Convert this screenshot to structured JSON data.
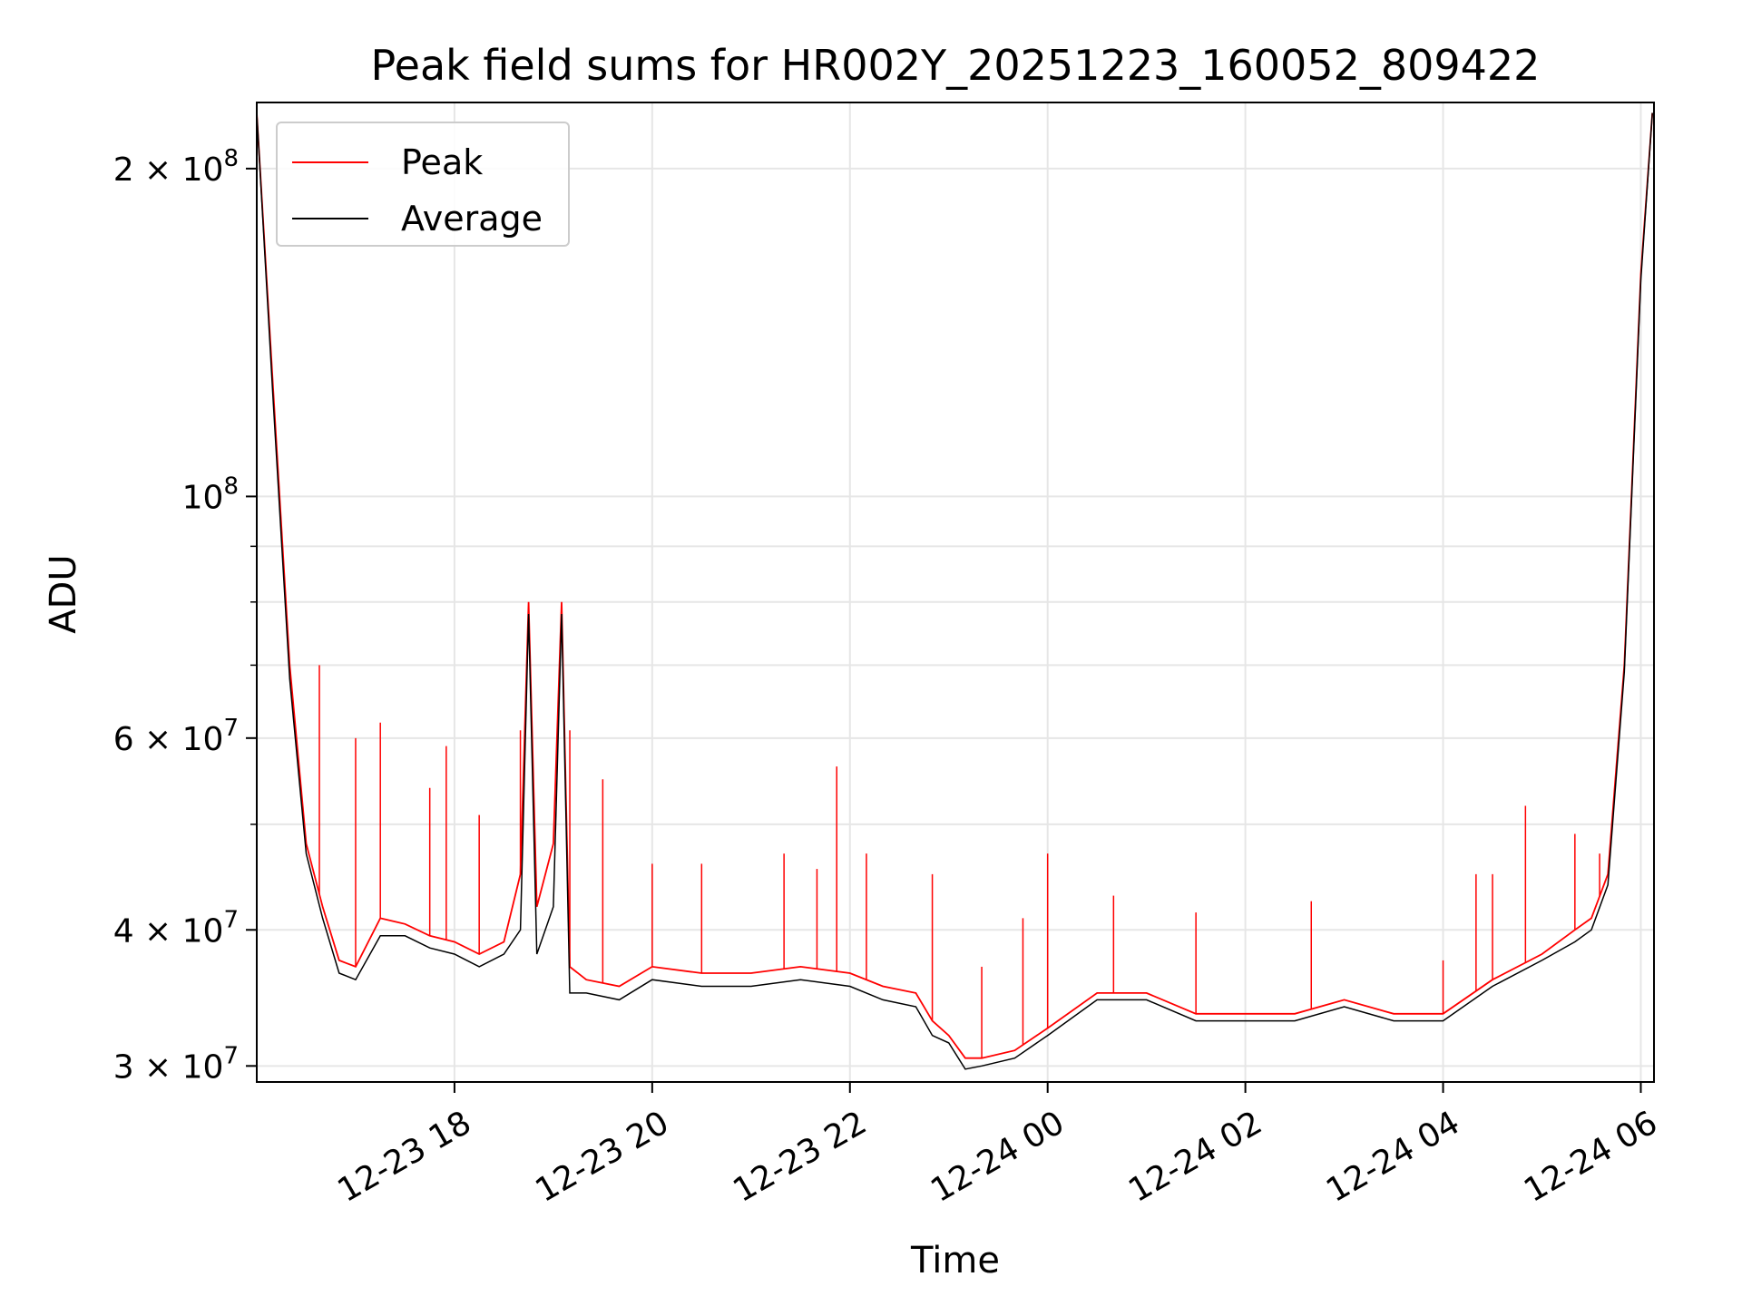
{
  "chart_data": {
    "type": "line",
    "title": "Peak field sums for HR002Y_20251223_160052_809422",
    "xlabel": "Time",
    "ylabel": "ADU",
    "yscale": "log",
    "ylim": [
      29000000,
      230000000
    ],
    "xlim": [
      "2025-12-23 16:00",
      "2025-12-24 06:08"
    ],
    "x_ticks": [
      "12-23 18",
      "12-23 20",
      "12-23 22",
      "12-24 00",
      "12-24 02",
      "12-24 04",
      "12-24 06"
    ],
    "y_ticks": [
      {
        "value": 30000000,
        "label": "3 × 10^7"
      },
      {
        "value": 40000000,
        "label": "4 × 10^7"
      },
      {
        "value": 60000000,
        "label": "6 × 10^7"
      },
      {
        "value": 100000000,
        "label": "10^8"
      },
      {
        "value": 200000000,
        "label": "2 × 10^8"
      }
    ],
    "grid": true,
    "legend": "upper left",
    "x": [
      "2025-12-23 16:00",
      "2025-12-23 16:10",
      "2025-12-23 16:20",
      "2025-12-23 16:30",
      "2025-12-23 16:40",
      "2025-12-23 16:50",
      "2025-12-23 17:00",
      "2025-12-23 17:15",
      "2025-12-23 17:30",
      "2025-12-23 17:45",
      "2025-12-23 18:00",
      "2025-12-23 18:15",
      "2025-12-23 18:30",
      "2025-12-23 18:40",
      "2025-12-23 18:45",
      "2025-12-23 18:50",
      "2025-12-23 19:00",
      "2025-12-23 19:05",
      "2025-12-23 19:10",
      "2025-12-23 19:20",
      "2025-12-23 19:40",
      "2025-12-23 20:00",
      "2025-12-23 20:30",
      "2025-12-23 21:00",
      "2025-12-23 21:30",
      "2025-12-23 22:00",
      "2025-12-23 22:20",
      "2025-12-23 22:40",
      "2025-12-23 22:50",
      "2025-12-23 23:00",
      "2025-12-23 23:10",
      "2025-12-23 23:20",
      "2025-12-23 23:40",
      "2025-12-24 00:00",
      "2025-12-24 00:30",
      "2025-12-24 01:00",
      "2025-12-24 01:30",
      "2025-12-24 02:00",
      "2025-12-24 02:30",
      "2025-12-24 03:00",
      "2025-12-24 03:30",
      "2025-12-24 04:00",
      "2025-12-24 04:30",
      "2025-12-24 05:00",
      "2025-12-24 05:20",
      "2025-12-24 05:30",
      "2025-12-24 05:40",
      "2025-12-24 05:50",
      "2025-12-24 06:00",
      "2025-12-24 06:07"
    ],
    "series": [
      {
        "name": "Peak",
        "color": "#ff0000",
        "values": [
          225000000,
          125000000,
          70000000,
          48000000,
          42000000,
          37500000,
          37000000,
          41000000,
          40500000,
          39500000,
          39000000,
          38000000,
          39000000,
          45000000,
          80000000,
          42000000,
          48000000,
          80000000,
          37000000,
          36000000,
          35500000,
          37000000,
          36500000,
          36500000,
          37000000,
          36500000,
          35500000,
          35000000,
          33000000,
          32000000,
          30500000,
          30500000,
          31000000,
          32500000,
          35000000,
          35000000,
          33500000,
          33500000,
          33500000,
          34500000,
          33500000,
          33500000,
          36000000,
          38000000,
          40000000,
          41000000,
          45000000,
          70000000,
          160000000,
          225000000
        ],
        "spikes": [
          {
            "x": "2025-12-23 16:38",
            "y": 70000000
          },
          {
            "x": "2025-12-23 17:00",
            "y": 60000000
          },
          {
            "x": "2025-12-23 17:15",
            "y": 62000000
          },
          {
            "x": "2025-12-23 17:45",
            "y": 54000000
          },
          {
            "x": "2025-12-23 17:55",
            "y": 59000000
          },
          {
            "x": "2025-12-23 18:15",
            "y": 51000000
          },
          {
            "x": "2025-12-23 18:40",
            "y": 61000000
          },
          {
            "x": "2025-12-23 18:45",
            "y": 80000000
          },
          {
            "x": "2025-12-23 19:05",
            "y": 80000000
          },
          {
            "x": "2025-12-23 19:10",
            "y": 61000000
          },
          {
            "x": "2025-12-23 19:30",
            "y": 55000000
          },
          {
            "x": "2025-12-23 20:00",
            "y": 46000000
          },
          {
            "x": "2025-12-23 20:30",
            "y": 46000000
          },
          {
            "x": "2025-12-23 21:20",
            "y": 47000000
          },
          {
            "x": "2025-12-23 21:40",
            "y": 45500000
          },
          {
            "x": "2025-12-23 21:52",
            "y": 56500000
          },
          {
            "x": "2025-12-23 22:10",
            "y": 47000000
          },
          {
            "x": "2025-12-23 22:50",
            "y": 45000000
          },
          {
            "x": "2025-12-23 23:20",
            "y": 37000000
          },
          {
            "x": "2025-12-23 23:45",
            "y": 41000000
          },
          {
            "x": "2025-12-24 00:00",
            "y": 47000000
          },
          {
            "x": "2025-12-24 00:40",
            "y": 43000000
          },
          {
            "x": "2025-12-24 01:30",
            "y": 41500000
          },
          {
            "x": "2025-12-24 02:40",
            "y": 42500000
          },
          {
            "x": "2025-12-24 04:00",
            "y": 37500000
          },
          {
            "x": "2025-12-24 04:20",
            "y": 45000000
          },
          {
            "x": "2025-12-24 04:30",
            "y": 45000000
          },
          {
            "x": "2025-12-24 04:50",
            "y": 52000000
          },
          {
            "x": "2025-12-24 05:20",
            "y": 49000000
          },
          {
            "x": "2025-12-24 05:35",
            "y": 47000000
          }
        ]
      },
      {
        "name": "Average",
        "color": "#000000",
        "values": [
          225000000,
          122000000,
          68000000,
          47000000,
          41000000,
          36500000,
          36000000,
          39500000,
          39500000,
          38500000,
          38000000,
          37000000,
          38000000,
          40000000,
          78000000,
          38000000,
          42000000,
          78000000,
          35000000,
          35000000,
          34500000,
          36000000,
          35500000,
          35500000,
          36000000,
          35500000,
          34500000,
          34000000,
          32000000,
          31500000,
          29800000,
          30000000,
          30500000,
          32000000,
          34500000,
          34500000,
          33000000,
          33000000,
          33000000,
          34000000,
          33000000,
          33000000,
          35500000,
          37500000,
          39000000,
          40000000,
          44000000,
          69000000,
          158000000,
          225000000
        ]
      }
    ]
  }
}
